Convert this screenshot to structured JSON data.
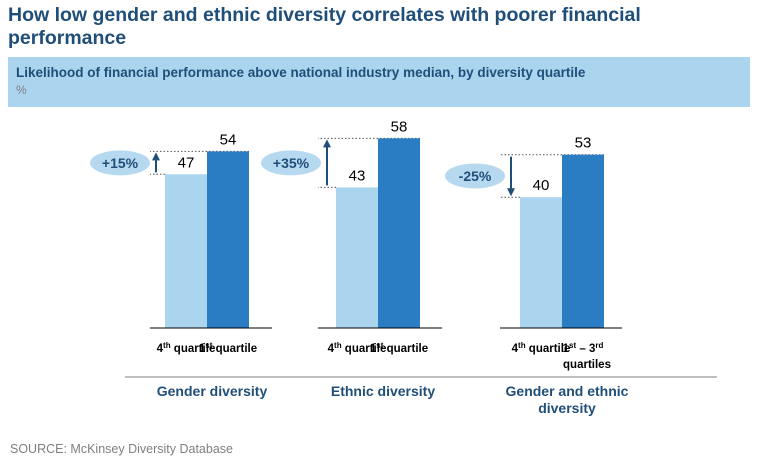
{
  "title": "How low gender and ethnic diversity correlates with poorer financial performance",
  "subtitle": "Likelihood of financial performance above national industry median, by diversity quartile",
  "unit": "%",
  "source": "SOURCE: McKinsey Diversity Database",
  "colors": {
    "light": "#abd4ee",
    "dark": "#2a7cc3",
    "text": "#1f4e79",
    "badge": "#b7d9f0"
  },
  "chart_data": [
    {
      "type": "bar",
      "group_label": [
        "Gender diversity"
      ],
      "categories": [
        "4th quartile",
        "1st quartile"
      ],
      "cat_parts": [
        [
          "4",
          "th",
          " quartile"
        ],
        [
          "1",
          "st",
          " quartile"
        ]
      ],
      "values": [
        47,
        54
      ],
      "difference_label": "+15%",
      "arrow": "up"
    },
    {
      "type": "bar",
      "group_label": [
        "Ethnic diversity"
      ],
      "categories": [
        "4th quartile",
        "1st quartile"
      ],
      "cat_parts": [
        [
          "4",
          "th",
          " quartile"
        ],
        [
          "1",
          "st",
          " quartile"
        ]
      ],
      "values": [
        43,
        58
      ],
      "difference_label": "+35%",
      "arrow": "up"
    },
    {
      "type": "bar",
      "group_label": [
        "Gender and ethnic",
        "diversity"
      ],
      "categories": [
        "4th quartile",
        "1st – 3rd quartiles"
      ],
      "cat_parts": [
        [
          "4",
          "th",
          " quartile"
        ],
        [
          "1",
          "st",
          " – 3",
          "rd",
          "quartiles"
        ]
      ],
      "values": [
        40,
        53
      ],
      "difference_label": "-25%",
      "arrow": "down"
    }
  ]
}
